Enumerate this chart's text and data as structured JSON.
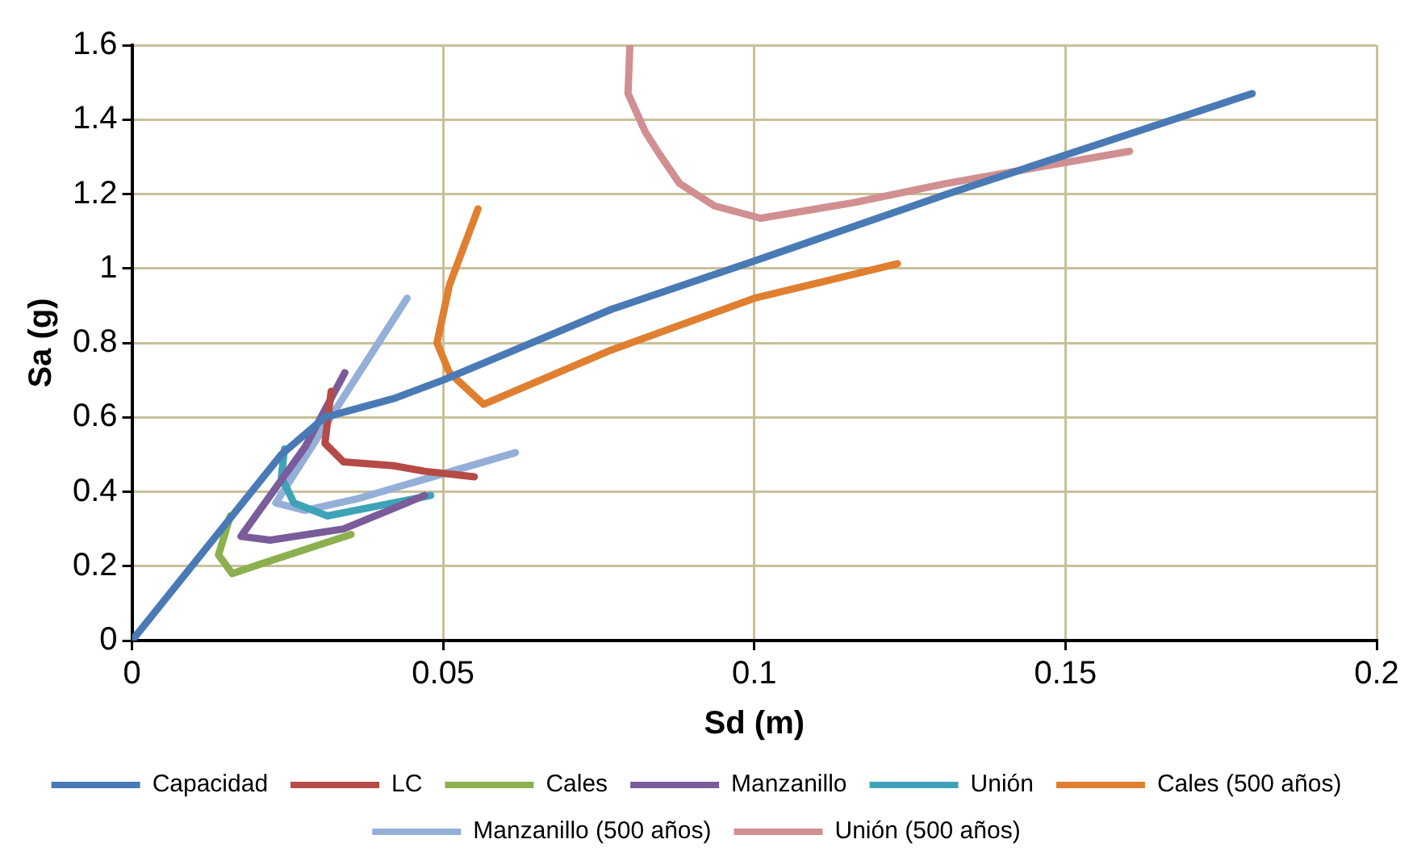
{
  "chart_data": {
    "type": "line",
    "xlabel": "Sd (m)",
    "ylabel": "Sa (g)",
    "xlim": [
      0,
      0.2
    ],
    "xticks": [
      {
        "value": 0,
        "label": "0"
      },
      {
        "value": 0.05,
        "label": "0.05"
      },
      {
        "value": 0.1,
        "label": "0.1"
      },
      {
        "value": 0.15,
        "label": "0.15"
      },
      {
        "value": 0.2,
        "label": "0.2"
      }
    ],
    "ylim": [
      0,
      1.6
    ],
    "yticks": [
      {
        "value": 0,
        "label": "0"
      },
      {
        "value": 0.2,
        "label": "0.2"
      },
      {
        "value": 0.4,
        "label": "0.4"
      },
      {
        "value": 0.6,
        "label": "0.6"
      },
      {
        "value": 0.8,
        "label": "0.8"
      },
      {
        "value": 1,
        "label": "1"
      },
      {
        "value": 1.2,
        "label": "1.2"
      },
      {
        "value": 1.4,
        "label": "1.4"
      },
      {
        "value": 1.6,
        "label": "1.6"
      }
    ],
    "grid": true,
    "legend": "bottom",
    "marker": "none",
    "line_style": "solid",
    "series": [
      {
        "name": "Capacidad",
        "color": "#4a7ab5",
        "x": [
          0,
          0.024,
          0.031,
          0.042,
          0.05,
          0.077,
          0.1,
          0.131,
          0.18
        ],
        "values": [
          0,
          0.5,
          0.6,
          0.65,
          0.7,
          0.89,
          1.02,
          1.2,
          1.47
        ]
      },
      {
        "name": "LC",
        "color": "#b54a46",
        "x": [
          0.032,
          0.031,
          0.034,
          0.042,
          0.047,
          0.055
        ],
        "values": [
          0.67,
          0.53,
          0.48,
          0.47,
          0.455,
          0.44
        ]
      },
      {
        "name": "Cales",
        "color": "#8cb04f",
        "x": [
          0.0158,
          0.0139,
          0.0161,
          0.0214,
          0.0352
        ],
        "values": [
          0.335,
          0.23,
          0.18,
          0.21,
          0.285
        ]
      },
      {
        "name": "Manzanillo",
        "color": "#7a5c9a",
        "x": [
          0.0342,
          0.0278,
          0.0175,
          0.0222,
          0.034,
          0.047
        ],
        "values": [
          0.72,
          0.52,
          0.28,
          0.27,
          0.3,
          0.39
        ]
      },
      {
        "name": "Unión",
        "color": "#3ea3b8",
        "x": [
          0.0245,
          0.024,
          0.026,
          0.0314,
          0.039,
          0.048
        ],
        "values": [
          0.515,
          0.44,
          0.37,
          0.335,
          0.36,
          0.39
        ]
      },
      {
        "name": "Cales (500 años)",
        "color": "#e07f30",
        "x": [
          0.0556,
          0.051,
          0.049,
          0.051,
          0.0565,
          0.0769,
          0.1,
          0.123
        ],
        "values": [
          1.16,
          0.955,
          0.8,
          0.72,
          0.635,
          0.78,
          0.92,
          1.013
        ]
      },
      {
        "name": "Manzanillo (500 años)",
        "color": "#94afd8",
        "x": [
          0.0442,
          0.0231,
          0.0278,
          0.036,
          0.0616
        ],
        "values": [
          0.92,
          0.37,
          0.35,
          0.38,
          0.505
        ]
      },
      {
        "name": "Unión (500 años)",
        "color": "#d18f91",
        "x": [
          0.08,
          0.0797,
          0.0825,
          0.0848,
          0.088,
          0.0936,
          0.101,
          0.116,
          0.1307,
          0.1603
        ],
        "values": [
          1.6,
          1.47,
          1.366,
          1.306,
          1.228,
          1.168,
          1.135,
          1.177,
          1.228,
          1.315
        ]
      }
    ]
  }
}
